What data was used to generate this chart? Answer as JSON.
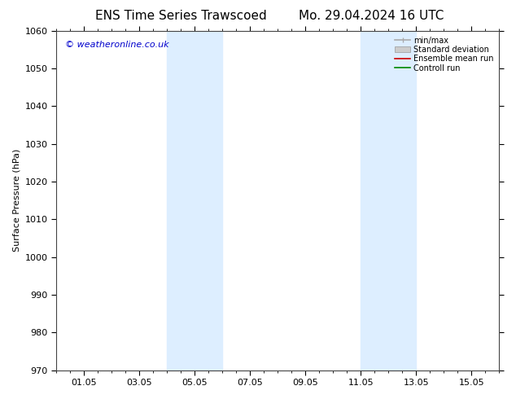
{
  "title_left": "ENS Time Series Trawscoed",
  "title_right": "Mo. 29.04.2024 16 UTC",
  "ylabel": "Surface Pressure (hPa)",
  "watermark": "© weatheronline.co.uk",
  "ylim": [
    970,
    1060
  ],
  "yticks": [
    970,
    980,
    990,
    1000,
    1010,
    1020,
    1030,
    1040,
    1050,
    1060
  ],
  "xtick_labels": [
    "01.05",
    "03.05",
    "05.05",
    "07.05",
    "09.05",
    "11.05",
    "13.05",
    "15.05"
  ],
  "xtick_positions": [
    2,
    6,
    10,
    14,
    18,
    22,
    26,
    30
  ],
  "xmin": 0,
  "xmax": 32,
  "shaded_bands": [
    {
      "xstart": 8,
      "xend": 12
    },
    {
      "xstart": 22,
      "xend": 26
    }
  ],
  "shade_color": "#ddeeff",
  "background_color": "#ffffff",
  "legend_entries": [
    {
      "label": "min/max",
      "color": "#aaaaaa",
      "lw": 1.2,
      "type": "line_with_caps"
    },
    {
      "label": "Standard deviation",
      "color": "#cccccc",
      "lw": 6,
      "type": "band"
    },
    {
      "label": "Ensemble mean run",
      "color": "#cc0000",
      "lw": 1.2,
      "type": "line"
    },
    {
      "label": "Controll run",
      "color": "#008800",
      "lw": 1.2,
      "type": "line"
    }
  ],
  "grid_color": "#dddddd",
  "border_color": "#444444",
  "title_fontsize": 11,
  "tick_fontsize": 8,
  "ylabel_fontsize": 8,
  "watermark_fontsize": 8,
  "watermark_color": "#0000cc"
}
